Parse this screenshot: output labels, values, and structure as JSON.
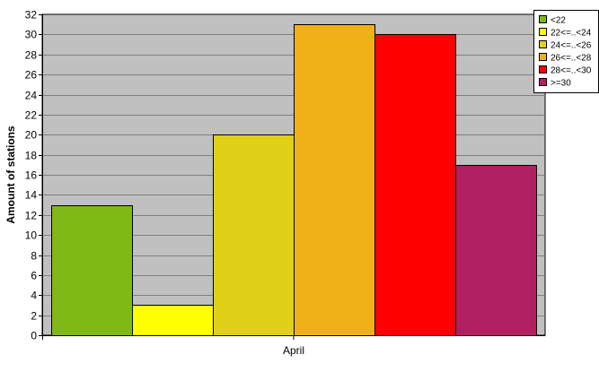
{
  "chart_data": {
    "type": "bar",
    "categories": [
      "April"
    ],
    "series": [
      {
        "name": "<22",
        "values": [
          13
        ],
        "color": "#80b818"
      },
      {
        "name": "22<=..<24",
        "values": [
          3
        ],
        "color": "#ffff00"
      },
      {
        "name": "24<=..<26",
        "values": [
          20
        ],
        "color": "#e0d018"
      },
      {
        "name": "26<=..<28",
        "values": [
          31
        ],
        "color": "#f0b018"
      },
      {
        "name": "28<=..<30",
        "values": [
          30
        ],
        "color": "#ff0000"
      },
      {
        "name": ">=30",
        "values": [
          17
        ],
        "color": "#b02060"
      }
    ],
    "title": "",
    "xlabel": "",
    "ylabel": "Amount of stations",
    "ylim": [
      0,
      32
    ],
    "ytick_step": 2,
    "grid": true,
    "plot_background": "#c0c0c0",
    "legend_position": "top-right"
  }
}
